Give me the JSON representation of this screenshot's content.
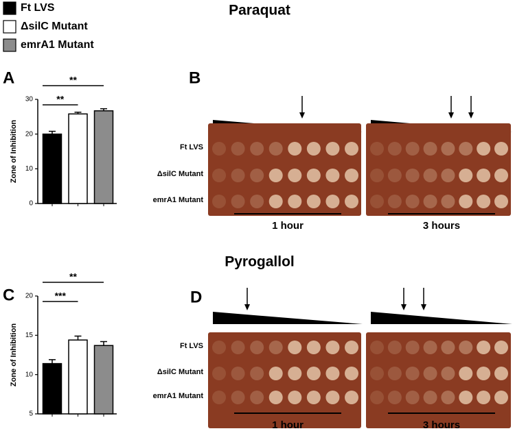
{
  "legend": [
    {
      "name": "Ft LVS",
      "color": "#000000"
    },
    {
      "name": "ΔsilC Mutant",
      "color": "#ffffff"
    },
    {
      "name": "emrA1 Mutant",
      "color": "#8c8c8c"
    }
  ],
  "chart_data": [
    {
      "type": "bar",
      "panel": "A",
      "title": "Paraquat",
      "ylabel": "Zone of Inhibition",
      "values": [
        20,
        25.8,
        26.7
      ],
      "errors": [
        0.8,
        0.5,
        0.6
      ],
      "colors": [
        "#000000",
        "#ffffff",
        "#8c8c8c"
      ],
      "ylim": [
        0,
        30
      ],
      "yticks": [
        0,
        10,
        20,
        30
      ],
      "annotations": [
        {
          "text": "**",
          "from": 0,
          "to": 1
        },
        {
          "text": "**",
          "from": 0,
          "to": 2
        }
      ]
    },
    {
      "type": "bar",
      "panel": "C",
      "title": "Pyrogallol",
      "ylabel": "Zone of Inhibition",
      "values": [
        11.4,
        14.4,
        13.7
      ],
      "errors": [
        0.5,
        0.5,
        0.5
      ],
      "colors": [
        "#000000",
        "#ffffff",
        "#8c8c8c"
      ],
      "ylim": [
        5,
        20
      ],
      "yticks": [
        5,
        10,
        15,
        20
      ],
      "annotations": [
        {
          "text": "***",
          "from": 0,
          "to": 1
        },
        {
          "text": "**",
          "from": 0,
          "to": 2
        }
      ]
    }
  ],
  "plates": [
    {
      "panel": "B",
      "rows": [
        "Ft LVS",
        "ΔsilC Mutant",
        "emrA1 Mutant"
      ],
      "times": [
        "1 hour",
        "3 hours"
      ]
    },
    {
      "panel": "D",
      "rows": [
        "Ft LVS",
        "ΔsilC Mutant",
        "emrA1 Mutant"
      ],
      "times": [
        "1 hour",
        "3 hours"
      ]
    }
  ]
}
